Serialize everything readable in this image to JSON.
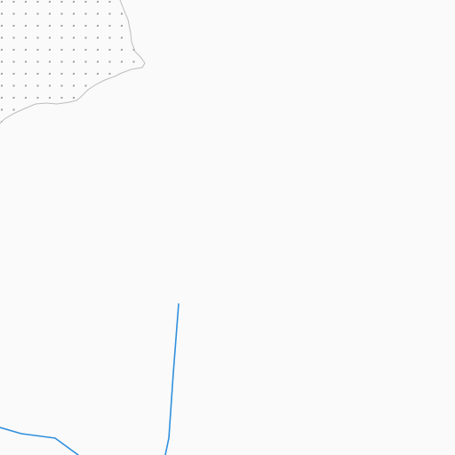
{
  "map": {
    "background_color": "#fafafa",
    "zoom_level": null
  },
  "features": {
    "wetland_area": {
      "kind": "dotted-area",
      "fill_color": "#fafafa",
      "outline_color": "#bdbdbd",
      "dot_color": "#9e9e9e"
    },
    "waterway": {
      "kind": "stream-line",
      "stroke_color": "#2f8fdd"
    }
  }
}
